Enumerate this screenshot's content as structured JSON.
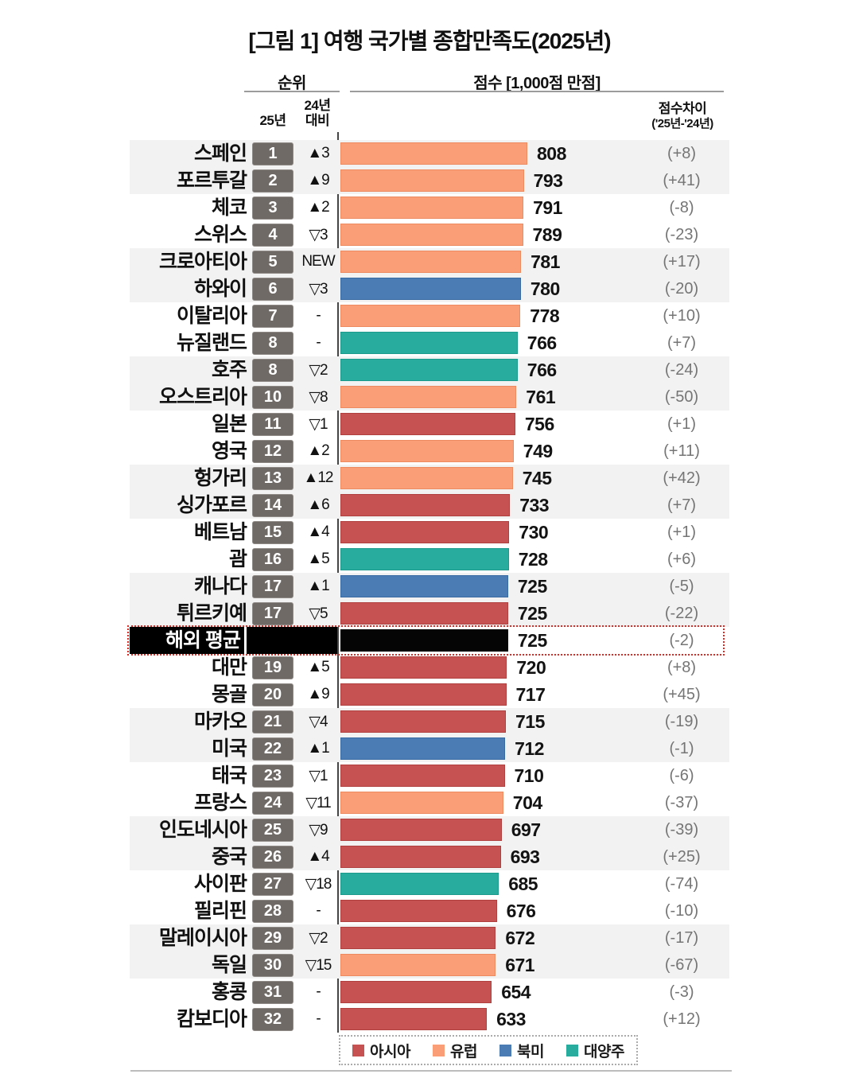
{
  "title": "[그림 1] 여행 국가별 종합만족도(2025년)",
  "header": {
    "rank_group_label": "순위",
    "score_group_label": "점수 [1,000점 만점]",
    "rank_2025_label": "25년",
    "vs_2024_label_line1": "24년",
    "vs_2024_label_line2": "대비",
    "score_diff_label_line1": "점수차이",
    "score_diff_label_line2": "('25년-'24년)"
  },
  "colors": {
    "asia": "#C65352",
    "asia_border": "#AF403F",
    "europe": "#FA9E78",
    "europe_border": "#EE8A5F",
    "north_america": "#4B7DB4",
    "north_america_border": "#3A6CA3",
    "oceania": "#27AC9D",
    "oceania_border": "#1E9A8C",
    "average": "#050505",
    "average_border": "#050505",
    "rank_badge": "#6F6A66",
    "zebra_row": "#F2F2F2",
    "diff_text": "#757575",
    "highlight_border": "#DB2B24"
  },
  "legend": [
    {
      "label": "아시아",
      "region": "asia",
      "color": "#C65352"
    },
    {
      "label": "유럽",
      "region": "europe",
      "color": "#FA9E78"
    },
    {
      "label": "북미",
      "region": "north_america",
      "color": "#4B7DB4"
    },
    {
      "label": "대양주",
      "region": "oceania",
      "color": "#27AC9D"
    }
  ],
  "chart_data": {
    "type": "bar",
    "orientation": "horizontal",
    "title": "[그림 1] 여행 국가별 종합만족도(2025년)",
    "score_axis_max": 1000,
    "score_axis_note": "점수 [1,000점 만점]",
    "bar_scale_note": "bar length proportional to score; 808 = longest bar",
    "rows": [
      {
        "country": "스페인",
        "rank_2025": "1",
        "vs_2024": "▲3",
        "score": 808,
        "score_diff": "(+8)",
        "region": "europe",
        "shaded": true,
        "average": false
      },
      {
        "country": "포르투갈",
        "rank_2025": "2",
        "vs_2024": "▲9",
        "score": 793,
        "score_diff": "(+41)",
        "region": "europe",
        "shaded": true,
        "average": false
      },
      {
        "country": "체코",
        "rank_2025": "3",
        "vs_2024": "▲2",
        "score": 791,
        "score_diff": "(-8)",
        "region": "europe",
        "shaded": false,
        "average": false
      },
      {
        "country": "스위스",
        "rank_2025": "4",
        "vs_2024": "▽3",
        "score": 789,
        "score_diff": "(-23)",
        "region": "europe",
        "shaded": false,
        "average": false
      },
      {
        "country": "크로아티아",
        "rank_2025": "5",
        "vs_2024": "NEW",
        "score": 781,
        "score_diff": "(+17)",
        "region": "europe",
        "shaded": true,
        "average": false
      },
      {
        "country": "하와이",
        "rank_2025": "6",
        "vs_2024": "▽3",
        "score": 780,
        "score_diff": "(-20)",
        "region": "north_america",
        "shaded": true,
        "average": false
      },
      {
        "country": "이탈리아",
        "rank_2025": "7",
        "vs_2024": "-",
        "score": 778,
        "score_diff": "(+10)",
        "region": "europe",
        "shaded": false,
        "average": false
      },
      {
        "country": "뉴질랜드",
        "rank_2025": "8",
        "vs_2024": "-",
        "score": 766,
        "score_diff": "(+7)",
        "region": "oceania",
        "shaded": false,
        "average": false
      },
      {
        "country": "호주",
        "rank_2025": "8",
        "vs_2024": "▽2",
        "score": 766,
        "score_diff": "(-24)",
        "region": "oceania",
        "shaded": true,
        "average": false
      },
      {
        "country": "오스트리아",
        "rank_2025": "10",
        "vs_2024": "▽8",
        "score": 761,
        "score_diff": "(-50)",
        "region": "europe",
        "shaded": true,
        "average": false
      },
      {
        "country": "일본",
        "rank_2025": "11",
        "vs_2024": "▽1",
        "score": 756,
        "score_diff": "(+1)",
        "region": "asia",
        "shaded": false,
        "average": false
      },
      {
        "country": "영국",
        "rank_2025": "12",
        "vs_2024": "▲2",
        "score": 749,
        "score_diff": "(+11)",
        "region": "europe",
        "shaded": false,
        "average": false
      },
      {
        "country": "헝가리",
        "rank_2025": "13",
        "vs_2024": "▲12",
        "score": 745,
        "score_diff": "(+42)",
        "region": "europe",
        "shaded": true,
        "average": false
      },
      {
        "country": "싱가포르",
        "rank_2025": "14",
        "vs_2024": "▲6",
        "score": 733,
        "score_diff": "(+7)",
        "region": "asia",
        "shaded": true,
        "average": false
      },
      {
        "country": "베트남",
        "rank_2025": "15",
        "vs_2024": "▲4",
        "score": 730,
        "score_diff": "(+1)",
        "region": "asia",
        "shaded": false,
        "average": false
      },
      {
        "country": "괌",
        "rank_2025": "16",
        "vs_2024": "▲5",
        "score": 728,
        "score_diff": "(+6)",
        "region": "oceania",
        "shaded": false,
        "average": false
      },
      {
        "country": "캐나다",
        "rank_2025": "17",
        "vs_2024": "▲1",
        "score": 725,
        "score_diff": "(-5)",
        "region": "north_america",
        "shaded": true,
        "average": false
      },
      {
        "country": "튀르키예",
        "rank_2025": "17",
        "vs_2024": "▽5",
        "score": 725,
        "score_diff": "(-22)",
        "region": "asia",
        "shaded": true,
        "average": false
      },
      {
        "country": "해외 평균",
        "rank_2025": "",
        "vs_2024": "",
        "score": 725,
        "score_diff": "(-2)",
        "region": "average",
        "shaded": false,
        "average": true
      },
      {
        "country": "대만",
        "rank_2025": "19",
        "vs_2024": "▲5",
        "score": 720,
        "score_diff": "(+8)",
        "region": "asia",
        "shaded": false,
        "average": false
      },
      {
        "country": "몽골",
        "rank_2025": "20",
        "vs_2024": "▲9",
        "score": 717,
        "score_diff": "(+45)",
        "region": "asia",
        "shaded": false,
        "average": false
      },
      {
        "country": "마카오",
        "rank_2025": "21",
        "vs_2024": "▽4",
        "score": 715,
        "score_diff": "(-19)",
        "region": "asia",
        "shaded": true,
        "average": false
      },
      {
        "country": "미국",
        "rank_2025": "22",
        "vs_2024": "▲1",
        "score": 712,
        "score_diff": "(-1)",
        "region": "north_america",
        "shaded": true,
        "average": false
      },
      {
        "country": "태국",
        "rank_2025": "23",
        "vs_2024": "▽1",
        "score": 710,
        "score_diff": "(-6)",
        "region": "asia",
        "shaded": false,
        "average": false
      },
      {
        "country": "프랑스",
        "rank_2025": "24",
        "vs_2024": "▽11",
        "score": 704,
        "score_diff": "(-37)",
        "region": "europe",
        "shaded": false,
        "average": false
      },
      {
        "country": "인도네시아",
        "rank_2025": "25",
        "vs_2024": "▽9",
        "score": 697,
        "score_diff": "(-39)",
        "region": "asia",
        "shaded": true,
        "average": false
      },
      {
        "country": "중국",
        "rank_2025": "26",
        "vs_2024": "▲4",
        "score": 693,
        "score_diff": "(+25)",
        "region": "asia",
        "shaded": true,
        "average": false
      },
      {
        "country": "사이판",
        "rank_2025": "27",
        "vs_2024": "▽18",
        "score": 685,
        "score_diff": "(-74)",
        "region": "oceania",
        "shaded": false,
        "average": false
      },
      {
        "country": "필리핀",
        "rank_2025": "28",
        "vs_2024": "-",
        "score": 676,
        "score_diff": "(-10)",
        "region": "asia",
        "shaded": false,
        "average": false
      },
      {
        "country": "말레이시아",
        "rank_2025": "29",
        "vs_2024": "▽2",
        "score": 672,
        "score_diff": "(-17)",
        "region": "asia",
        "shaded": true,
        "average": false
      },
      {
        "country": "독일",
        "rank_2025": "30",
        "vs_2024": "▽15",
        "score": 671,
        "score_diff": "(-67)",
        "region": "europe",
        "shaded": true,
        "average": false
      },
      {
        "country": "홍콩",
        "rank_2025": "31",
        "vs_2024": "-",
        "score": 654,
        "score_diff": "(-3)",
        "region": "asia",
        "shaded": false,
        "average": false
      },
      {
        "country": "캄보디아",
        "rank_2025": "32",
        "vs_2024": "-",
        "score": 633,
        "score_diff": "(+12)",
        "region": "asia",
        "shaded": false,
        "average": false
      }
    ]
  }
}
